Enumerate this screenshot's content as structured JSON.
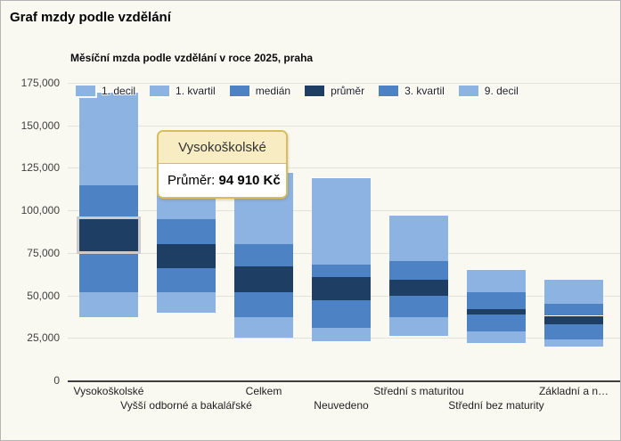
{
  "page": {
    "title": "Graf mzdy podle vzdělání"
  },
  "chart": {
    "subtitle": "Měsíční mzda podle vzdělání v roce 2025, praha",
    "colors": {
      "light": "#8db3e2",
      "medium": "#4d83c4",
      "dark": "#1f3e64"
    },
    "legend": [
      {
        "label": "1. decil",
        "color_key": "light"
      },
      {
        "label": "1. kvartil",
        "color_key": "light"
      },
      {
        "label": "medián",
        "color_key": "medium"
      },
      {
        "label": "průměr",
        "color_key": "dark"
      },
      {
        "label": "3. kvartil",
        "color_key": "medium"
      },
      {
        "label": "9. decil",
        "color_key": "light"
      }
    ],
    "tooltip": {
      "title": "Vysokoškolské",
      "label": "Průměr: ",
      "value": "94 910 Kč"
    }
  },
  "chart_data": {
    "type": "bar",
    "subtype": "floating-range-stack",
    "title": "Měsíční mzda podle vzdělání v roce 2025, praha",
    "xlabel": "",
    "ylabel": "",
    "ylim": [
      0,
      175000
    ],
    "grid": true,
    "legend_position": "top",
    "categories": [
      "Vysokoškolské",
      "Vyšší odborné a bakalářské",
      "Celkem",
      "Neuvedeno",
      "Střední s maturitou",
      "Střední bez maturity",
      "Základní a n…"
    ],
    "series": [
      {
        "name": "1. decil",
        "values": [
          37000,
          40000,
          25000,
          23000,
          26000,
          22000,
          20000
        ]
      },
      {
        "name": "1. kvartil",
        "values": [
          52000,
          52000,
          37000,
          31000,
          37000,
          29000,
          24000
        ]
      },
      {
        "name": "medián",
        "values": [
          76000,
          66000,
          52000,
          47000,
          50000,
          39000,
          33000
        ]
      },
      {
        "name": "průměr",
        "values": [
          94910,
          80000,
          67000,
          61000,
          59000,
          42000,
          38000
        ]
      },
      {
        "name": "3. kvartil",
        "values": [
          115000,
          95000,
          80000,
          68000,
          70000,
          52000,
          45000
        ]
      },
      {
        "name": "9. decil",
        "values": [
          169000,
          121000,
          122000,
          119000,
          97000,
          65000,
          59000
        ]
      }
    ],
    "yticks": [
      {
        "value": 0,
        "label": "0"
      },
      {
        "value": 25000,
        "label": "25,000"
      },
      {
        "value": 50000,
        "label": "50,000"
      },
      {
        "value": 75000,
        "label": "75,000"
      },
      {
        "value": 100000,
        "label": "100,000"
      },
      {
        "value": 125000,
        "label": "125,000"
      },
      {
        "value": 150000,
        "label": "150,000"
      },
      {
        "value": 175000,
        "label": "175,000"
      }
    ],
    "highlight": {
      "category": "Vysokoškolské",
      "series": "průměr"
    }
  }
}
